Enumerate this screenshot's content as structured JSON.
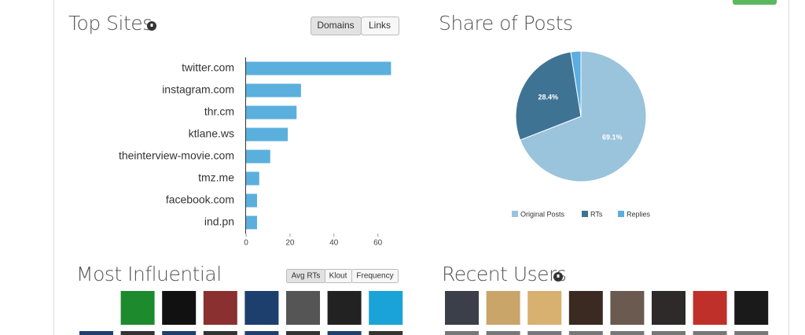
{
  "chart_data": [
    {
      "type": "bar",
      "title": "Top Sites",
      "orientation": "horizontal",
      "categories": [
        "twitter.com",
        "instagram.com",
        "thr.cm",
        "ktlane.ws",
        "theinterview-movie.com",
        "tmz.me",
        "facebook.com",
        "ind.pn"
      ],
      "values": [
        66,
        25,
        23,
        19,
        11,
        6,
        5,
        5
      ],
      "color": "#5aafdd",
      "xlim": [
        0,
        68
      ],
      "xticks": [
        0,
        20,
        40,
        60
      ]
    },
    {
      "type": "pie",
      "title": "Share of Posts",
      "categories": [
        "Original Posts",
        "RTs",
        "Replies"
      ],
      "values": [
        69.1,
        28.4,
        2.5
      ],
      "value_labels": [
        "69.1%",
        "28.4%",
        null
      ],
      "colors": [
        "#9ac3dc",
        "#3f7394",
        "#5aaee0"
      ],
      "legend": "bottom"
    }
  ],
  "top_sites_buttons": [
    "Domains",
    "Links"
  ],
  "most_influential": {
    "title": "Most Influential",
    "buttons": [
      "Avg RTs",
      "Klout",
      "Frequency"
    ]
  },
  "recent_users": {
    "title": "Recent Users"
  }
}
